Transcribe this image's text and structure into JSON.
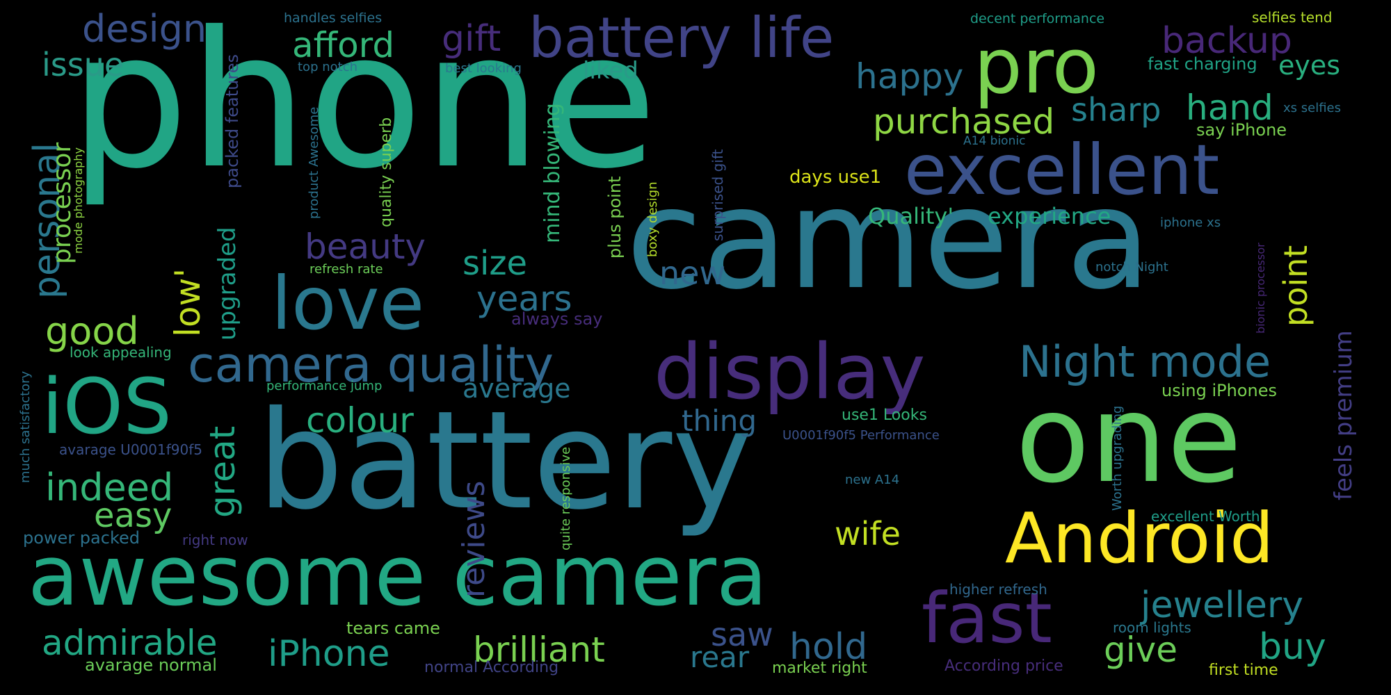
{
  "words": [
    {
      "text": "phone",
      "color": "#21A585"
    },
    {
      "text": "camera",
      "color": "#2A788E"
    },
    {
      "text": "battery",
      "color": "#2A788E"
    },
    {
      "text": "one",
      "color": "#5EC962"
    },
    {
      "text": "awesome camera",
      "color": "#22A884"
    },
    {
      "text": "display",
      "color": "#472D7B"
    },
    {
      "text": "excellent",
      "color": "#3B528B"
    },
    {
      "text": "pro",
      "color": "#7AD151"
    },
    {
      "text": "battery life",
      "color": "#414487"
    },
    {
      "text": "Android",
      "color": "#FDE725"
    },
    {
      "text": "fast",
      "color": "#482878"
    },
    {
      "text": "love",
      "color": "#2A788E"
    },
    {
      "text": "iOS",
      "color": "#21A585"
    },
    {
      "text": "camera quality",
      "color": "#31688E"
    },
    {
      "text": "Night mode",
      "color": "#2C728E"
    },
    {
      "text": "jewellery",
      "color": "#26828E"
    },
    {
      "text": "brilliant",
      "color": "#7AD151"
    },
    {
      "text": "admirable",
      "color": "#22A884"
    },
    {
      "text": "iPhone",
      "color": "#1F9E89"
    },
    {
      "text": "design",
      "color": "#3B528B"
    },
    {
      "text": "afford",
      "color": "#35B779"
    },
    {
      "text": "gift",
      "color": "#472D7B"
    },
    {
      "text": "backup",
      "color": "#482878"
    },
    {
      "text": "issue",
      "color": "#2A9A88"
    },
    {
      "text": "happy",
      "color": "#2C728E"
    },
    {
      "text": "purchased",
      "color": "#8FD744"
    },
    {
      "text": "sharp",
      "color": "#26828E"
    },
    {
      "text": "hand",
      "color": "#29AF7F"
    },
    {
      "text": "eyes",
      "color": "#29AF7F"
    },
    {
      "text": "liked",
      "color": "#2A9A88"
    },
    {
      "text": "beauty",
      "color": "#443A83"
    },
    {
      "text": "size",
      "color": "#1F9E89"
    },
    {
      "text": "years",
      "color": "#2C728E"
    },
    {
      "text": "new",
      "color": "#31688E"
    },
    {
      "text": "good",
      "color": "#86D549"
    },
    {
      "text": "colour",
      "color": "#29AF7F"
    },
    {
      "text": "indeed",
      "color": "#35B779"
    },
    {
      "text": "easy",
      "color": "#5EC962"
    },
    {
      "text": "thing",
      "color": "#31688E"
    },
    {
      "text": "average",
      "color": "#2A788E"
    },
    {
      "text": "wife",
      "color": "#C2DF23"
    },
    {
      "text": "saw",
      "color": "#3B528B"
    },
    {
      "text": "hold",
      "color": "#31688E"
    },
    {
      "text": "rear",
      "color": "#2A788E"
    },
    {
      "text": "give",
      "color": "#6CCE59"
    },
    {
      "text": "buy",
      "color": "#21A585"
    },
    {
      "text": "Quality'",
      "color": "#35B779"
    },
    {
      "text": "experience",
      "color": "#22A884"
    },
    {
      "text": "personal",
      "color": "#2A788E"
    },
    {
      "text": "processor",
      "color": "#7AD151"
    },
    {
      "text": "low'",
      "color": "#C2DF23"
    },
    {
      "text": "upgraded",
      "color": "#1F9E89"
    },
    {
      "text": "great",
      "color": "#22A884"
    },
    {
      "text": "reviews",
      "color": "#3E4A89"
    },
    {
      "text": "mind blowing",
      "color": "#35B779"
    },
    {
      "text": "point",
      "color": "#C2DF23"
    },
    {
      "text": "feels premium",
      "color": "#433E85"
    },
    {
      "text": "handles selfies",
      "color": "#2C728E"
    },
    {
      "text": "decent performance",
      "color": "#1F9E89"
    },
    {
      "text": "selfies tend",
      "color": "#B5DE2B"
    },
    {
      "text": "top notch",
      "color": "#2C728E"
    },
    {
      "text": "best looking",
      "color": "#2A788E"
    },
    {
      "text": "fast charging",
      "color": "#20A386"
    },
    {
      "text": "xs selfies",
      "color": "#2C728E"
    },
    {
      "text": "A14 bionic",
      "color": "#2C728E"
    },
    {
      "text": "say iPhone",
      "color": "#7AD151"
    },
    {
      "text": "days use1",
      "color": "#DCE319"
    },
    {
      "text": "iphone xs",
      "color": "#2C728E"
    },
    {
      "text": "refresh rate",
      "color": "#6CCE59"
    },
    {
      "text": "always say",
      "color": "#472D7B"
    },
    {
      "text": "look appealing",
      "color": "#35B779"
    },
    {
      "text": "performance jump",
      "color": "#35B779"
    },
    {
      "text": "using iPhones",
      "color": "#7AD151"
    },
    {
      "text": "use1 Looks",
      "color": "#35B779"
    },
    {
      "text": "U0001f90f5 Performance",
      "color": "#3B528B"
    },
    {
      "text": "avarage U0001f90f5",
      "color": "#3B528B"
    },
    {
      "text": "notch Night",
      "color": "#2C728E"
    },
    {
      "text": "new A14",
      "color": "#2C728E"
    },
    {
      "text": "power packed",
      "color": "#2C728E"
    },
    {
      "text": "right now",
      "color": "#443A83"
    },
    {
      "text": "excellent Worth",
      "color": "#1F9E89"
    },
    {
      "text": "higher refresh",
      "color": "#31688E"
    },
    {
      "text": "room lights",
      "color": "#2A788E"
    },
    {
      "text": "tears came",
      "color": "#7AD151"
    },
    {
      "text": "avarage normal",
      "color": "#6CCE59"
    },
    {
      "text": "normal According",
      "color": "#414487"
    },
    {
      "text": "market right",
      "color": "#7AD151"
    },
    {
      "text": "According price",
      "color": "#472D7B"
    },
    {
      "text": "first time",
      "color": "#C2DF23"
    },
    {
      "text": "packed features",
      "color": "#3E4A89"
    },
    {
      "text": "mode photography",
      "color": "#8FD744"
    },
    {
      "text": "product Awesome",
      "color": "#2C728E"
    },
    {
      "text": "quality superb",
      "color": "#7AD151"
    },
    {
      "text": "plus point",
      "color": "#7AD151"
    },
    {
      "text": "boxy design",
      "color": "#B5DE2B"
    },
    {
      "text": "surprised gift",
      "color": "#3B528B"
    },
    {
      "text": "quite responsive",
      "color": "#6CCE59"
    },
    {
      "text": "bionic processor",
      "color": "#482878"
    },
    {
      "text": "Worth upgrading",
      "color": "#2C728E"
    },
    {
      "text": "much satisfactory",
      "color": "#2C728E"
    }
  ]
}
